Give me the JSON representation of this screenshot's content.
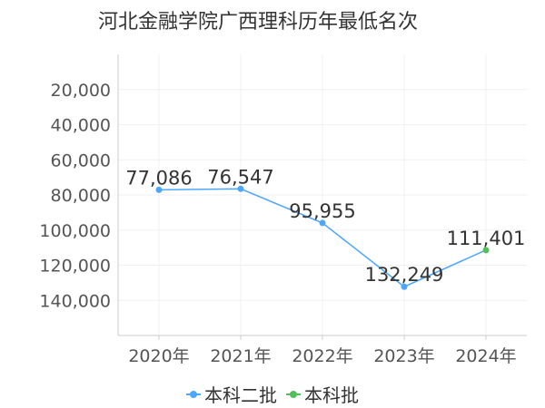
{
  "chart_data": {
    "type": "line",
    "title": "河北金融学院广西理科历年最低名次",
    "xlabel": "",
    "ylabel": "",
    "categories": [
      "2020年",
      "2021年",
      "2022年",
      "2023年",
      "2024年"
    ],
    "y_axis": {
      "reversed": true,
      "range": [
        0,
        160000
      ],
      "ticks": [
        20000,
        40000,
        60000,
        80000,
        100000,
        120000,
        140000
      ],
      "tick_labels": [
        "20,000",
        "40,000",
        "60,000",
        "80,000",
        "100,000",
        "120,000",
        "140,000"
      ]
    },
    "grid": true,
    "legend_position": "bottom",
    "series": [
      {
        "name": "本科二批",
        "color": "#4da6ff",
        "values": [
          77086,
          76547,
          95955,
          132249,
          null
        ]
      },
      {
        "name": "本科批",
        "color": "#52c05a",
        "values": [
          null,
          null,
          null,
          null,
          111401
        ]
      }
    ],
    "connector_color": "#4da6ff",
    "point_labels": [
      "77,086",
      "76,547",
      "95,955",
      "132,249",
      "111,401"
    ]
  }
}
